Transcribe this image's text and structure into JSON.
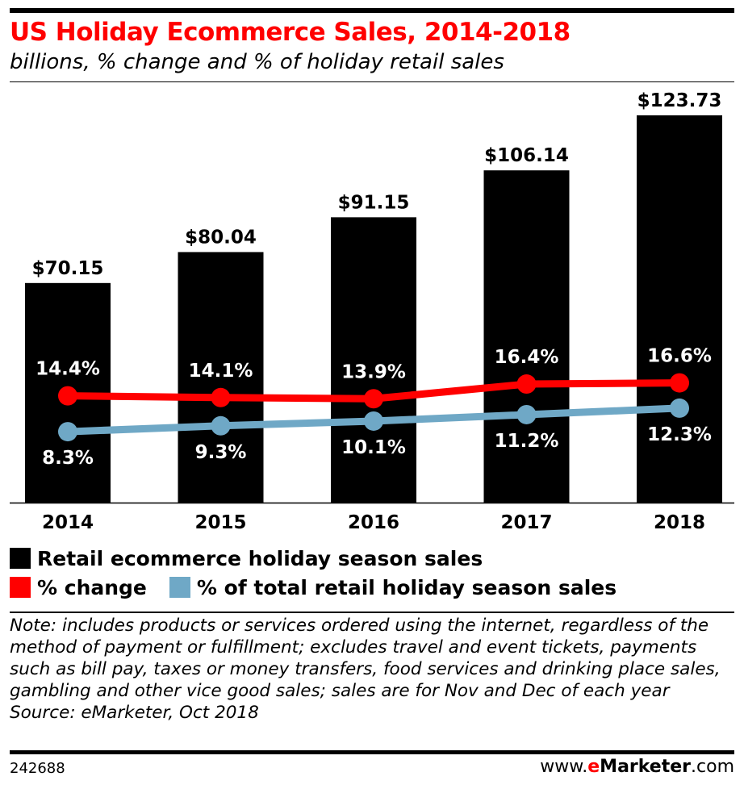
{
  "header": {
    "title": "US Holiday Ecommerce Sales, 2014-2018",
    "subtitle": "billions, % change and % of holiday retail sales"
  },
  "chart_data": {
    "type": "bar",
    "categories": [
      "2014",
      "2015",
      "2016",
      "2017",
      "2018"
    ],
    "series": [
      {
        "name": "Retail ecommerce holiday season sales",
        "kind": "bar",
        "color": "#000000",
        "values": [
          70.15,
          80.04,
          91.15,
          106.14,
          123.73
        ],
        "labels": [
          "$70.15",
          "$80.04",
          "$91.15",
          "$106.14",
          "$123.73"
        ]
      },
      {
        "name": "% change",
        "kind": "line",
        "color": "#ff0000",
        "values": [
          14.4,
          14.1,
          13.9,
          16.4,
          16.6
        ],
        "labels": [
          "14.4%",
          "14.1%",
          "13.9%",
          "16.4%",
          "16.6%"
        ]
      },
      {
        "name": "% of total retail holiday season sales",
        "kind": "line",
        "color": "#6fa8c6",
        "values": [
          8.3,
          9.3,
          10.1,
          11.2,
          12.3
        ],
        "labels": [
          "8.3%",
          "9.3%",
          "10.1%",
          "11.2%",
          "12.3%"
        ]
      }
    ],
    "title": "US Holiday Ecommerce Sales, 2014-2018",
    "subtitle": "billions, % change and % of holiday retail sales",
    "grid": false,
    "legend_placement": "bottom"
  },
  "legend": {
    "bars_label": "Retail ecommerce holiday season sales",
    "change_label": "% change",
    "share_label": "% of total retail holiday season sales"
  },
  "footnote": {
    "note": "Note: includes products or services ordered using the internet, regardless of the method of payment or fulfillment; excludes travel and event tickets, payments such as bill pay, taxes or money transfers, food services and drinking place sales, gambling and other vice good sales; sales are for Nov and Dec of each year",
    "source": "Source: eMarketer, Oct 2018"
  },
  "footer": {
    "chart_id": "242688",
    "site_prefix": "www.",
    "site_brand_e": "e",
    "site_brand_rest": "Marketer",
    "site_suffix": ".com"
  }
}
